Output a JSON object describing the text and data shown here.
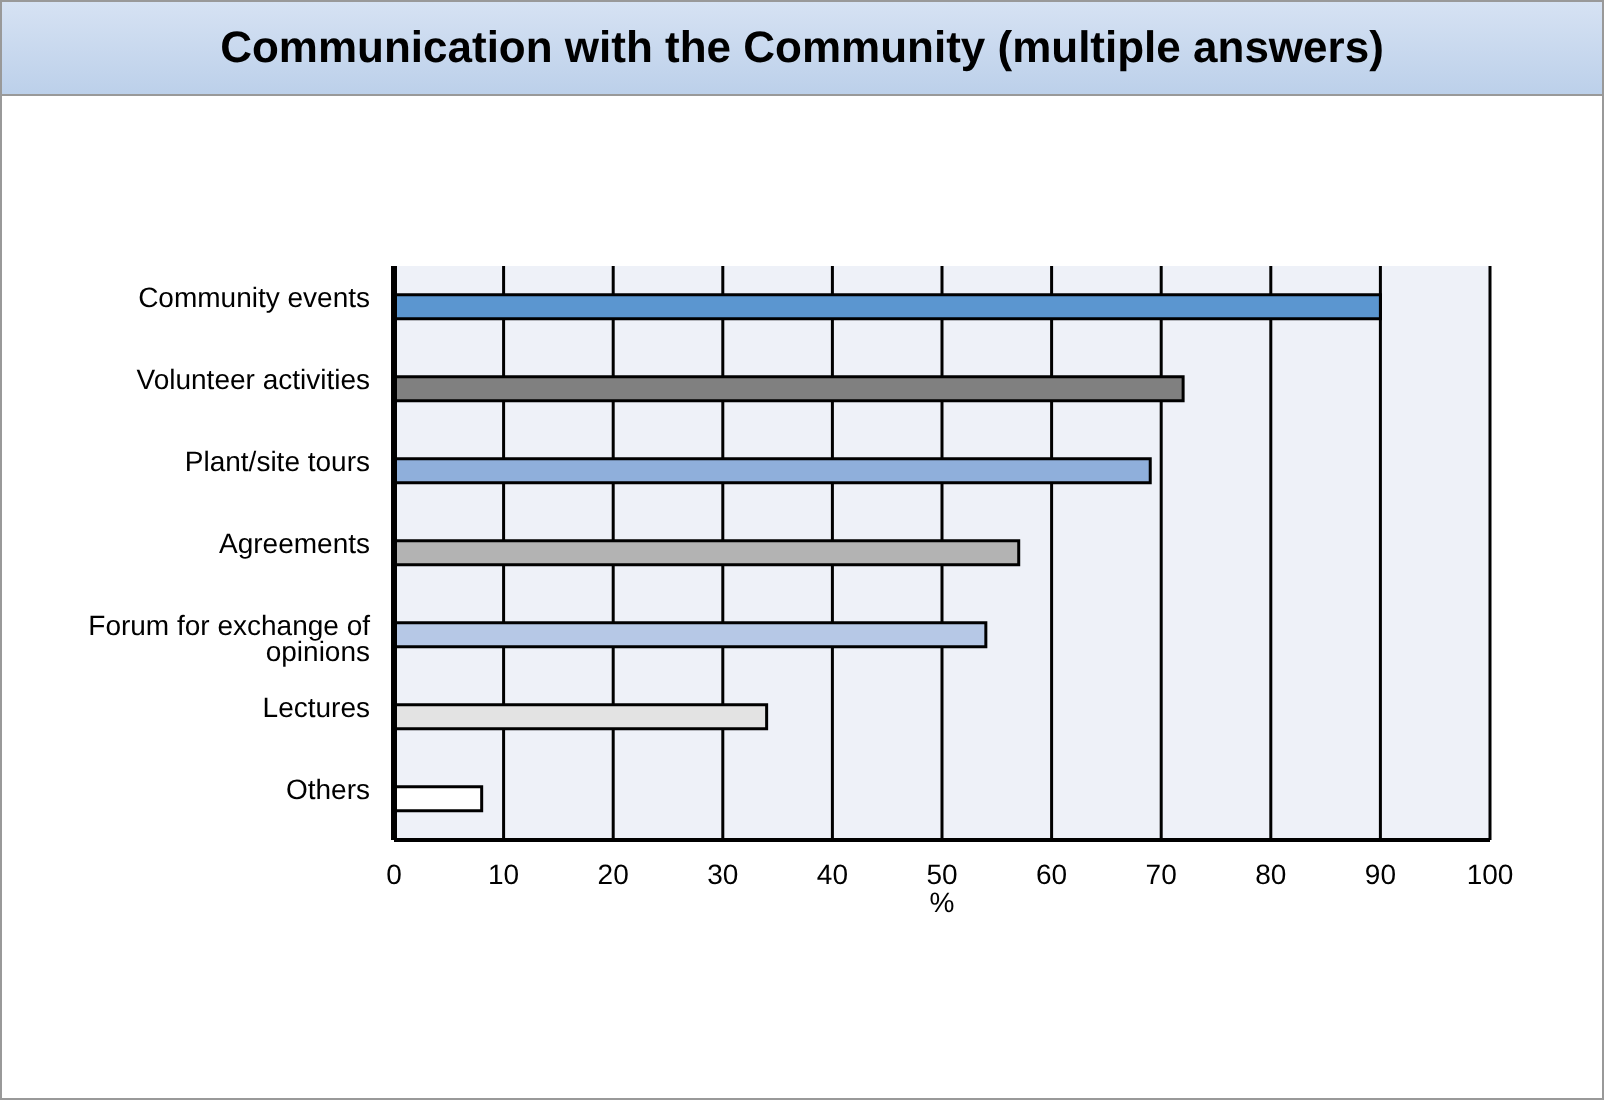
{
  "chart_data": {
    "type": "bar",
    "orientation": "horizontal",
    "title": "Communication with the Community (multiple answers)",
    "xlabel": "%",
    "categories": [
      "Community events",
      "Volunteer activities",
      "Plant/site tours",
      "Agreements",
      "Forum for exchange of opinions",
      "Lectures",
      "Others"
    ],
    "values": [
      90,
      72,
      69,
      57,
      54,
      34,
      8
    ],
    "colors": [
      "#5b96d0",
      "#808080",
      "#8fafdb",
      "#b3b3b3",
      "#b6c8e6",
      "#e3e3e3",
      "#ffffff"
    ],
    "xlim": [
      0,
      100
    ],
    "xticks": [
      0,
      10,
      20,
      30,
      40,
      50,
      60,
      70,
      80,
      90,
      100
    ],
    "grid": "x"
  }
}
